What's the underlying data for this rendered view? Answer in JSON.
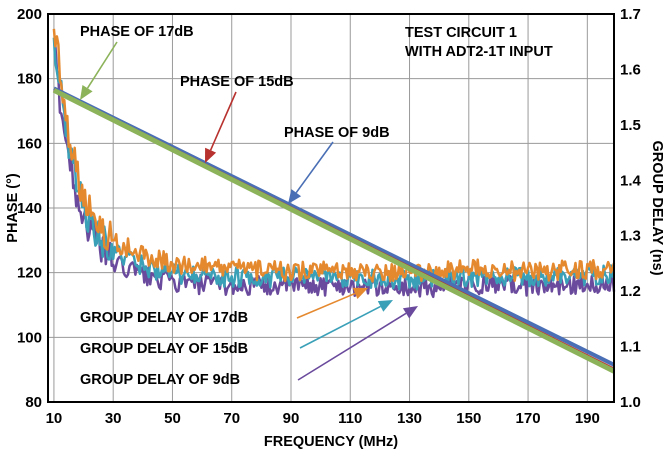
{
  "chart_data": {
    "type": "line",
    "xlabel": "FREQUENCY (MHz)",
    "ylabel": "PHASE (°)",
    "y2label": "GROUP DELAY (ns)",
    "xlim": [
      8,
      199
    ],
    "ylim": [
      80,
      200
    ],
    "y2lim": [
      1.0,
      1.7
    ],
    "x_ticks": [
      10,
      30,
      50,
      70,
      90,
      110,
      130,
      150,
      170,
      190
    ],
    "y_ticks": [
      80,
      100,
      120,
      140,
      160,
      180,
      200
    ],
    "y2_ticks": [
      "1.0",
      "1.1",
      "1.2",
      "1.3",
      "1.4",
      "1.5",
      "1.6",
      "1.7"
    ],
    "grid": true,
    "annotations": {
      "test_circuit": [
        "TEST CIRCUIT 1",
        "WITH ADT2-1T INPUT"
      ],
      "phase_17": "PHASE OF 17dB",
      "phase_15": "PHASE OF 15dB",
      "phase_9": "PHASE OF 9dB",
      "gd_17": "GROUP DELAY OF 17dB",
      "gd_15": "GROUP DELAY OF 15dB",
      "gd_9": "GROUP DELAY OF 9dB"
    },
    "series": [
      {
        "name": "PHASE OF 9dB",
        "axis": "left",
        "color": "#4a6fb5",
        "x": [
          10,
          199
        ],
        "y": [
          177,
          91.5
        ]
      },
      {
        "name": "PHASE OF 15dB",
        "axis": "left",
        "color": "#b8322f",
        "x": [
          10,
          199
        ],
        "y": [
          176.5,
          90
        ]
      },
      {
        "name": "PHASE OF 17dB",
        "axis": "left",
        "color": "#8cb35a",
        "x": [
          10,
          199
        ],
        "y": [
          176.4,
          89.5
        ]
      },
      {
        "name": "GROUP DELAY OF 9dB",
        "axis": "right",
        "color": "#6a4a9c",
        "x": [
          10,
          12,
          15,
          18,
          21,
          25,
          30,
          40,
          50,
          70,
          90,
          110,
          130,
          150,
          170,
          199
        ],
        "y": [
          1.64,
          1.55,
          1.44,
          1.37,
          1.32,
          1.29,
          1.25,
          1.23,
          1.215,
          1.21,
          1.21,
          1.21,
          1.205,
          1.21,
          1.21,
          1.215
        ]
      },
      {
        "name": "GROUP DELAY OF 15dB",
        "axis": "right",
        "color": "#3aa0b8",
        "x": [
          10,
          12,
          15,
          18,
          21,
          25,
          30,
          40,
          50,
          70,
          90,
          110,
          130,
          150,
          170,
          199
        ],
        "y": [
          1.66,
          1.57,
          1.47,
          1.39,
          1.34,
          1.3,
          1.27,
          1.245,
          1.23,
          1.225,
          1.225,
          1.225,
          1.22,
          1.225,
          1.225,
          1.23
        ]
      },
      {
        "name": "GROUP DELAY OF 17dB",
        "axis": "right",
        "color": "#e5892f",
        "x": [
          10,
          12,
          15,
          18,
          21,
          25,
          30,
          40,
          50,
          70,
          90,
          110,
          130,
          150,
          170,
          199
        ],
        "y": [
          1.68,
          1.6,
          1.49,
          1.41,
          1.36,
          1.32,
          1.29,
          1.265,
          1.25,
          1.24,
          1.235,
          1.235,
          1.235,
          1.24,
          1.235,
          1.24
        ]
      }
    ]
  }
}
